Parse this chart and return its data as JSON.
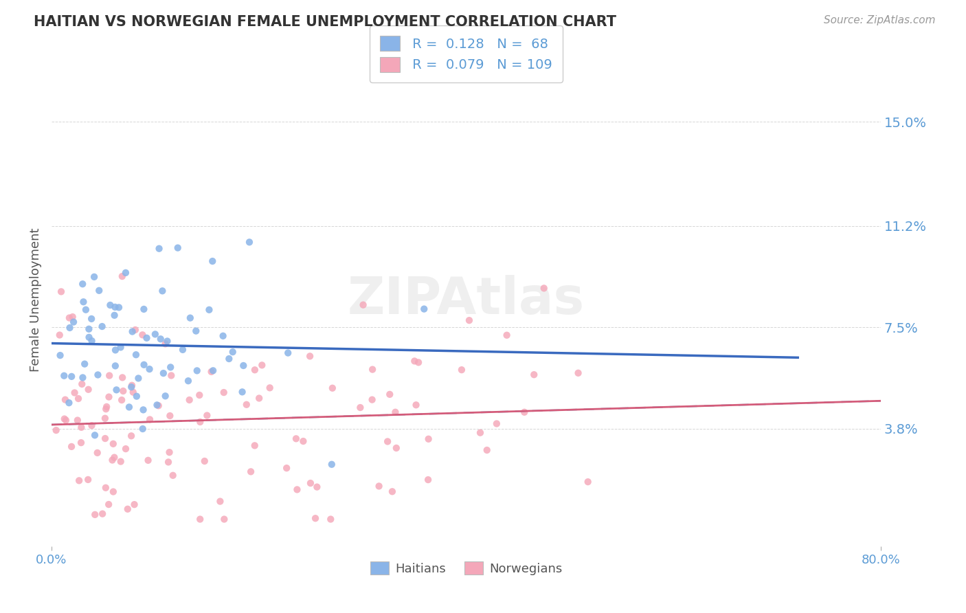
{
  "title": "HAITIAN VS NORWEGIAN FEMALE UNEMPLOYMENT CORRELATION CHART",
  "source": "Source: ZipAtlas.com",
  "ylabel": "Female Unemployment",
  "xlim": [
    0.0,
    0.8
  ],
  "ylim": [
    -0.005,
    0.175
  ],
  "yticks": [
    0.038,
    0.075,
    0.112,
    0.15
  ],
  "ytick_labels": [
    "3.8%",
    "7.5%",
    "11.2%",
    "15.0%"
  ],
  "xticks": [
    0.0,
    0.8
  ],
  "xtick_labels": [
    "0.0%",
    "80.0%"
  ],
  "haitian_color": "#8ab4e8",
  "norwegian_color": "#f4a7b9",
  "haitian_R": 0.128,
  "haitian_N": 68,
  "norwegian_R": 0.079,
  "norwegian_N": 109,
  "trend_blue": "#3a6abf",
  "trend_pink": "#d45c7a",
  "trend_dashed_color": "#7aaad4",
  "background": "#ffffff",
  "watermark": "ZIPAtlas",
  "legend_label_haitian": "Haitians",
  "legend_label_norwegian": "Norwegians",
  "title_color": "#333333",
  "axis_label_color": "#555555",
  "tick_color": "#5b9bd5",
  "grid_color": "#cccccc",
  "haitian_seed": 42,
  "norwegian_seed": 99
}
